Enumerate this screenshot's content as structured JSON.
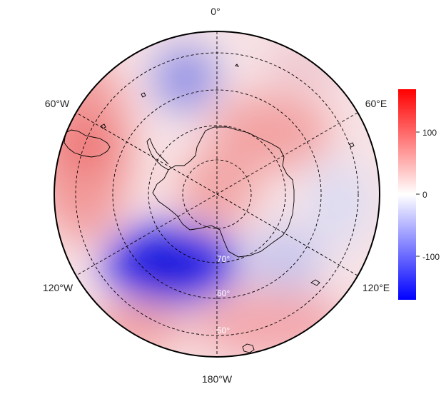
{
  "map": {
    "projection": "south polar stereographic",
    "longitude_labels": [
      "0°",
      "60°E",
      "120°E",
      "180°W",
      "120°W",
      "60°W"
    ],
    "latitude_labels": [
      "70°",
      "60°",
      "50°"
    ]
  },
  "colorbar": {
    "ticks": [
      "100",
      "0",
      "-100"
    ],
    "range": [
      -170,
      170
    ],
    "colormap": [
      "#0000ff",
      "#ffffff",
      "#ff0000"
    ]
  },
  "colors": {
    "positive": "#ff0000",
    "negative": "#0000ff",
    "coastline": "#000000",
    "grid": "#000000"
  }
}
